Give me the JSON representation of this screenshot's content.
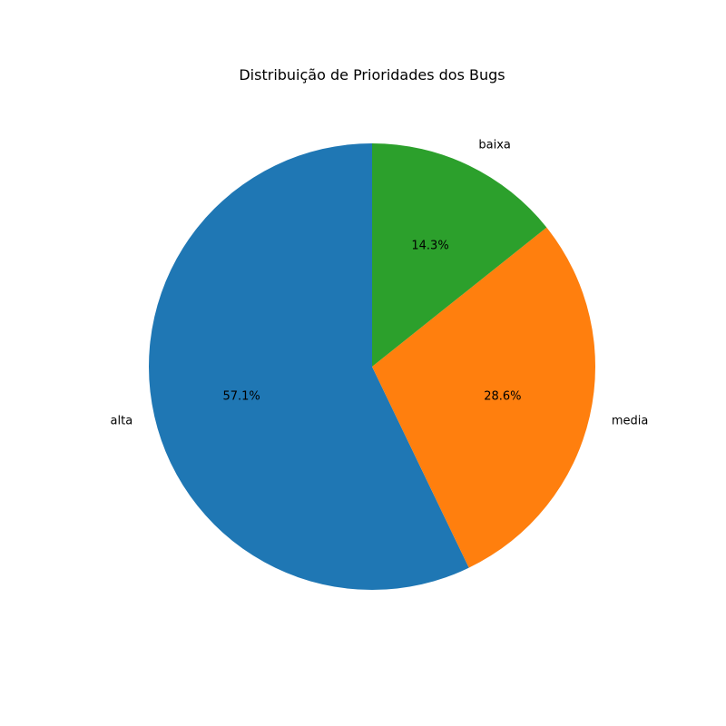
{
  "chart_data": {
    "type": "pie",
    "title": "Distribuição de Prioridades dos Bugs",
    "categories": [
      "alta",
      "media",
      "baixa"
    ],
    "values": [
      4,
      2,
      1
    ],
    "percent_labels": [
      "57.1%",
      "28.6%",
      "14.3%"
    ],
    "colors": [
      "#1f77b4",
      "#ff7f0e",
      "#2ca02c"
    ],
    "start_angle_deg": 90,
    "direction": "counterclockwise",
    "legend": "none"
  }
}
